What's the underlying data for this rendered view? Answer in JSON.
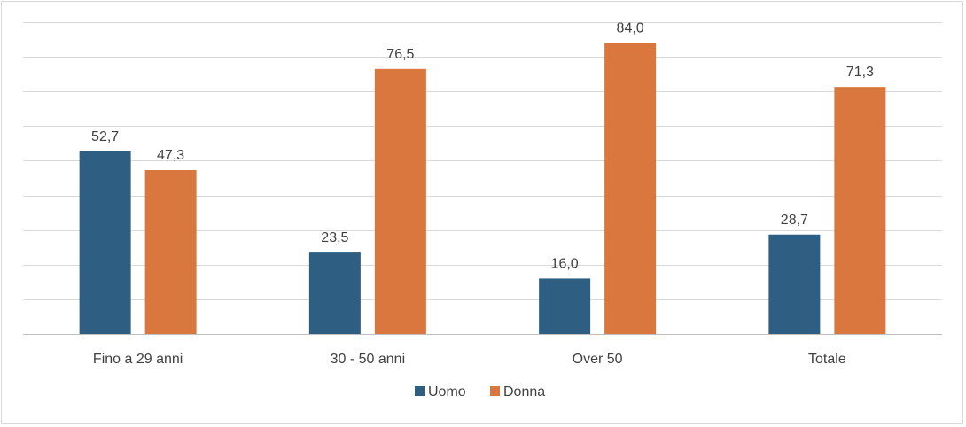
{
  "chart_data": {
    "type": "bar",
    "title": "",
    "xlabel": "",
    "ylabel": "",
    "categories": [
      "Fino a 29 anni",
      "30 - 50 anni",
      "Over 50",
      "Totale"
    ],
    "series": [
      {
        "name": "Uomo",
        "color": "#2e5f82",
        "values": [
          52.7,
          23.5,
          16.0,
          28.7
        ],
        "labels": [
          "52,7",
          "23,5",
          "16,0",
          "28,7"
        ]
      },
      {
        "name": "Donna",
        "color": "#d9773f",
        "values": [
          47.3,
          76.5,
          84.0,
          71.3
        ],
        "labels": [
          "47,3",
          "76,5",
          "84,0",
          "71,3"
        ]
      }
    ],
    "ylim": [
      0,
      90
    ],
    "ytick_step": 10,
    "y_axis_labels_visible": false,
    "grid": true,
    "legend_position": "bottom"
  }
}
